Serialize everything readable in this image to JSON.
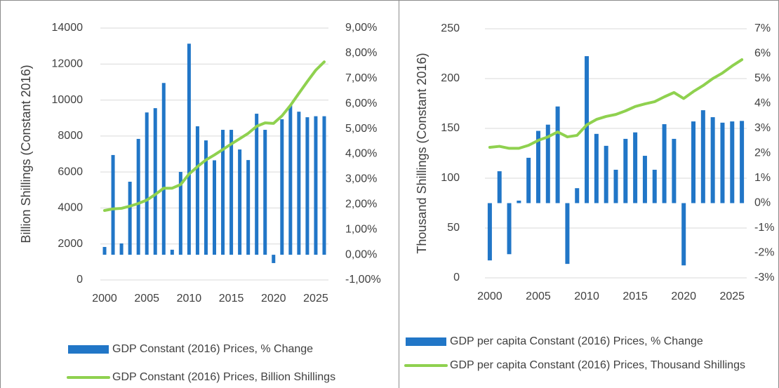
{
  "chart_data": [
    {
      "type": "combo",
      "y_label": "Billion Shillings (Constant 2016)",
      "x": [
        2000,
        2001,
        2002,
        2003,
        2004,
        2005,
        2006,
        2007,
        2008,
        2009,
        2010,
        2011,
        2012,
        2013,
        2014,
        2015,
        2016,
        2017,
        2018,
        2019,
        2020,
        2021,
        2022,
        2023,
        2024,
        2025,
        2026
      ],
      "xlim": [
        1999.5,
        2026.5
      ],
      "xticks": [
        2000,
        2005,
        2010,
        2015,
        2020,
        2025
      ],
      "ylim": [
        0,
        14000
      ],
      "yticks": [
        0,
        2000,
        4000,
        6000,
        8000,
        10000,
        12000,
        14000
      ],
      "y2lim": [
        -1,
        9
      ],
      "y2ticks": [
        {
          "value": -1,
          "label": "-1,00%"
        },
        {
          "value": 0,
          "label": "0,00%"
        },
        {
          "value": 1,
          "label": "1,00%"
        },
        {
          "value": 2,
          "label": "2,00%"
        },
        {
          "value": 3,
          "label": "3,00%"
        },
        {
          "value": 4,
          "label": "4,00%"
        },
        {
          "value": 5,
          "label": "5,00%"
        },
        {
          "value": 6,
          "label": "6,00%"
        },
        {
          "value": 7,
          "label": "7,00%"
        },
        {
          "value": 8,
          "label": "8,00%"
        },
        {
          "value": 9,
          "label": "9,00%"
        }
      ],
      "grid": true,
      "series": [
        {
          "name": "GDP Constant (2016) Prices, % Change",
          "type": "bar",
          "axis": "y2",
          "color": "#2176c7",
          "values": [
            0.31,
            3.96,
            0.45,
            2.9,
            4.6,
            5.65,
            5.82,
            6.82,
            0.2,
            3.29,
            8.38,
            5.1,
            4.54,
            3.75,
            4.96,
            4.96,
            4.18,
            3.76,
            5.6,
            4.96,
            -0.33,
            5.38,
            5.93,
            5.68,
            5.46,
            5.5,
            5.5
          ]
        },
        {
          "name": "GDP Constant (2016) Prices, Billion Shillings",
          "type": "line",
          "color": "#8fd14f",
          "values": [
            3860,
            3950,
            3980,
            4100,
            4250,
            4440,
            4750,
            5100,
            5100,
            5300,
            5890,
            6300,
            6670,
            6950,
            7250,
            7560,
            7850,
            8150,
            8540,
            8730,
            8700,
            9120,
            9700,
            10370,
            11030,
            11660,
            12120
          ]
        }
      ]
    },
    {
      "type": "combo",
      "y_label": "Thousand Shillings (Constant 2016)",
      "x": [
        2000,
        2001,
        2002,
        2003,
        2004,
        2005,
        2006,
        2007,
        2008,
        2009,
        2010,
        2011,
        2012,
        2013,
        2014,
        2015,
        2016,
        2017,
        2018,
        2019,
        2020,
        2021,
        2022,
        2023,
        2024,
        2025,
        2026
      ],
      "xlim": [
        1999.5,
        2026.5
      ],
      "xticks": [
        2000,
        2005,
        2010,
        2015,
        2020,
        2025
      ],
      "ylim": [
        0,
        250
      ],
      "yticks": [
        0,
        50,
        100,
        150,
        200,
        250
      ],
      "y2lim": [
        -3,
        7
      ],
      "y2ticks": [
        {
          "value": -3,
          "label": "-3%"
        },
        {
          "value": -2,
          "label": "-2%"
        },
        {
          "value": -1,
          "label": "-1%"
        },
        {
          "value": 0,
          "label": "0%"
        },
        {
          "value": 1,
          "label": "1%"
        },
        {
          "value": 2,
          "label": "2%"
        },
        {
          "value": 3,
          "label": "3%"
        },
        {
          "value": 4,
          "label": "4%"
        },
        {
          "value": 5,
          "label": "5%"
        },
        {
          "value": 6,
          "label": "6%"
        },
        {
          "value": 7,
          "label": "7%"
        }
      ],
      "grid": true,
      "series": [
        {
          "name": "GDP per capita Constant (2016) Prices, % Change",
          "type": "bar",
          "axis": "y2",
          "color": "#2176c7",
          "values": [
            -2.3,
            1.28,
            -2.05,
            0.1,
            1.82,
            2.9,
            3.15,
            3.88,
            -2.44,
            0.6,
            5.9,
            2.78,
            2.3,
            1.34,
            2.58,
            2.84,
            1.9,
            1.34,
            3.17,
            2.58,
            -2.5,
            3.28,
            3.73,
            3.45,
            3.23,
            3.28,
            3.3
          ]
        },
        {
          "name": "GDP per capita Constant (2016) Prices, Thousand Shillings",
          "type": "line",
          "color": "#8fd14f",
          "values": [
            131,
            132,
            130,
            130,
            133,
            138,
            141.5,
            146.5,
            141.5,
            143,
            153.5,
            159,
            162,
            164,
            167.6,
            172,
            174.6,
            176.8,
            181.7,
            186,
            180,
            187,
            193,
            200,
            205.6,
            212.7,
            219
          ]
        }
      ]
    }
  ]
}
